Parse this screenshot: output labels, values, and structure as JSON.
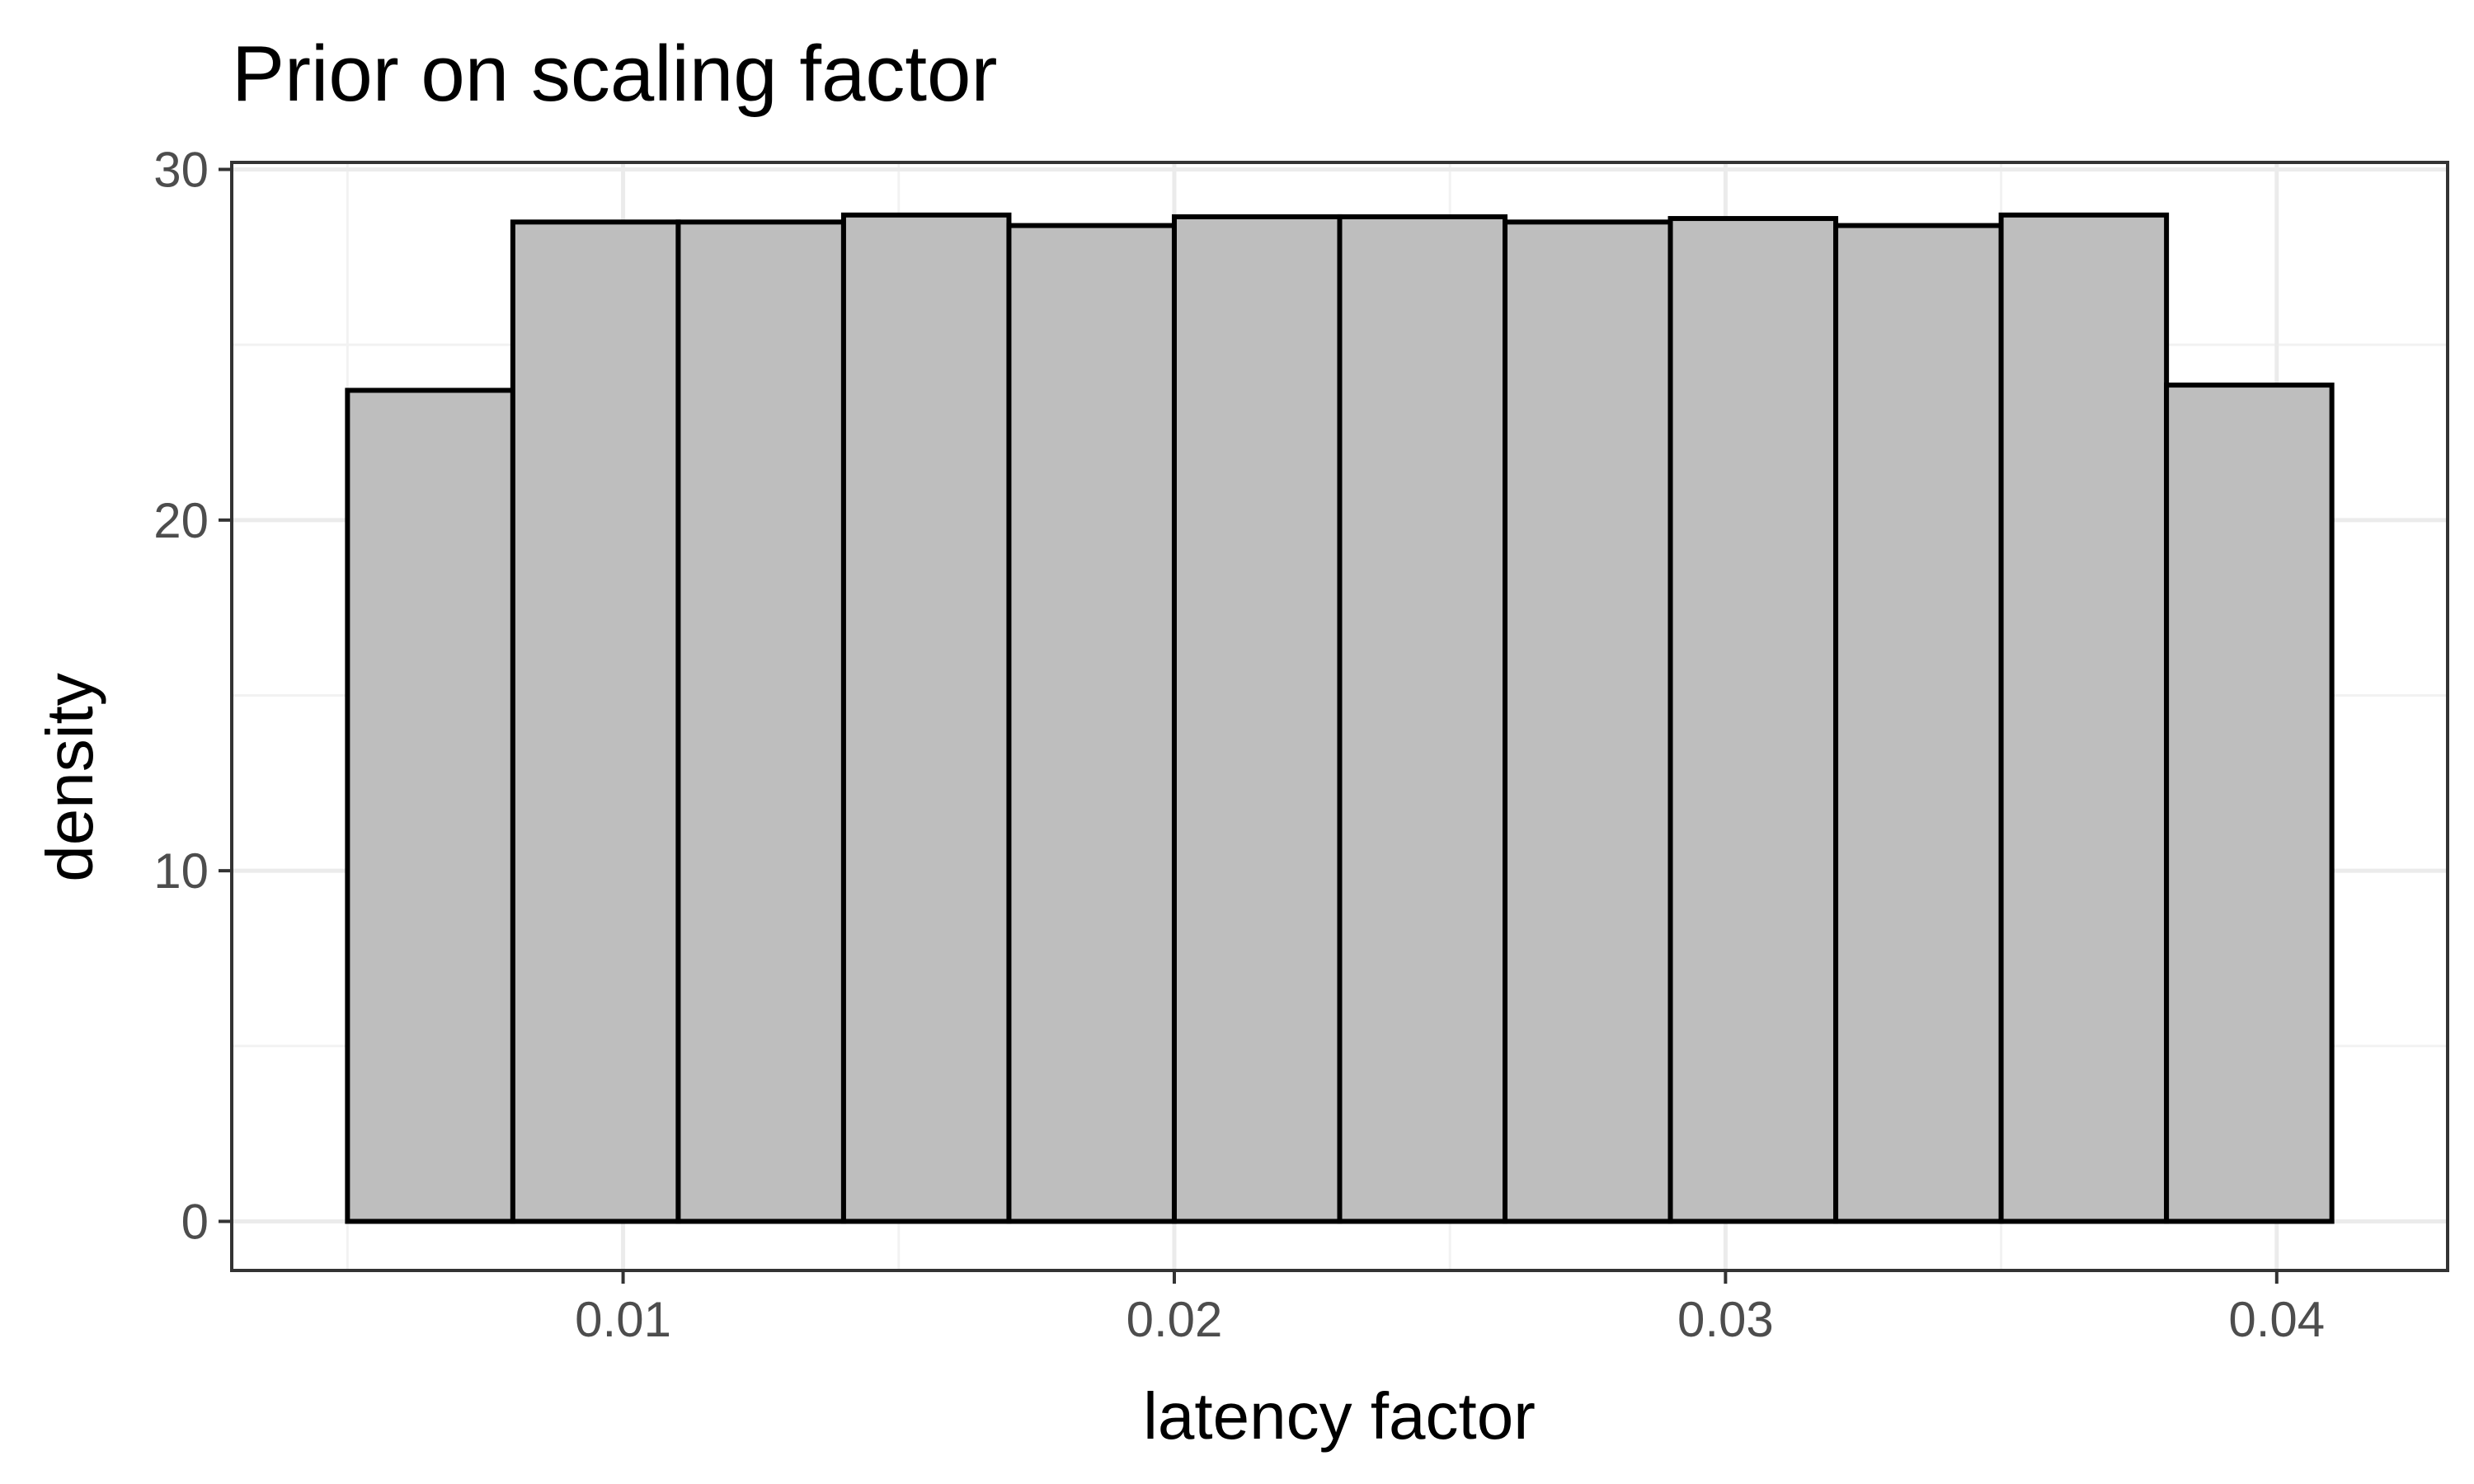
{
  "chart_data": {
    "type": "bar",
    "title": "Prior on scaling factor",
    "xlabel": "latency factor",
    "ylabel": "density",
    "bin_edges": [
      0.005,
      0.008,
      0.011,
      0.014,
      0.017,
      0.02,
      0.023,
      0.026,
      0.029,
      0.032,
      0.035,
      0.038,
      0.041
    ],
    "values": [
      23.7,
      28.5,
      28.5,
      28.7,
      28.4,
      28.65,
      28.65,
      28.5,
      28.6,
      28.4,
      28.7,
      23.85
    ],
    "xlim": [
      0.0029,
      0.0431
    ],
    "ylim": [
      -1.4,
      30.2
    ],
    "x_ticks": [
      0.01,
      0.02,
      0.03,
      0.04
    ],
    "x_tick_labels": [
      "0.01",
      "0.02",
      "0.03",
      "0.04"
    ],
    "y_ticks": [
      0,
      10,
      20,
      30
    ],
    "y_tick_labels": [
      "0",
      "10",
      "20",
      "30"
    ],
    "grid": true,
    "bar_fill": "#bebebe",
    "bar_outline": "#000000"
  }
}
